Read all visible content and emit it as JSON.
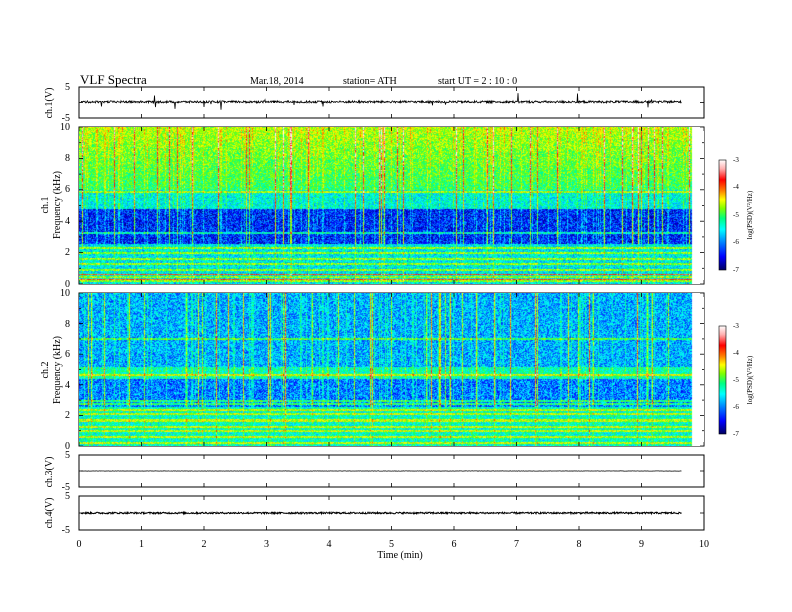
{
  "header": {
    "title": "VLF  Spectra",
    "date": "Mar.18, 2014",
    "station": "station= ATH",
    "start": "start  UT  =   2  : 10 : 0"
  },
  "colors": {
    "spectrogram_scale": [
      "#000060",
      "#0000ff",
      "#0080ff",
      "#00ffff",
      "#00ff80",
      "#80ff00",
      "#ffff00",
      "#ff8000",
      "#ff0000",
      "#ffb0b0",
      "#ffffff"
    ]
  },
  "chart_data": [
    {
      "type": "line",
      "name": "ch1-waveform",
      "ylabel": "ch.1(V)",
      "ylim": [
        -5,
        5
      ],
      "yticks": [
        "5",
        "-5"
      ],
      "xlim": [
        0,
        10
      ],
      "baseline": 0.2,
      "noise_amplitude": 0.35
    },
    {
      "type": "heatmap",
      "name": "ch1-spectrogram",
      "ylabel_top": "ch.1",
      "ylabel": "Frequency  (kHz)",
      "ylim": [
        0,
        10
      ],
      "yticks": [
        "0",
        "2",
        "4",
        "6",
        "8",
        "10"
      ],
      "xlim": [
        0,
        10
      ],
      "data_end_min": 9.8,
      "colorbar": {
        "label": "log(PSD)(V²/Hz)",
        "range": [
          -7,
          -3
        ],
        "ticks": [
          "-3",
          "-4",
          "-5",
          "-6",
          "-7"
        ]
      }
    },
    {
      "type": "heatmap",
      "name": "ch2-spectrogram",
      "ylabel_top": "ch.2",
      "ylabel": "Frequency  (kHz)",
      "ylim": [
        0,
        10
      ],
      "yticks": [
        "0",
        "2",
        "4",
        "6",
        "8",
        "10"
      ],
      "xlim": [
        0,
        10
      ],
      "data_end_min": 9.8,
      "colorbar": {
        "label": "log(PSD)(V²/Hz)",
        "range": [
          -7,
          -3
        ],
        "ticks": [
          "-3",
          "-4",
          "-5",
          "-6",
          "-7"
        ]
      }
    },
    {
      "type": "line",
      "name": "ch3-waveform",
      "ylabel": "ch.3(V)",
      "ylim": [
        -5,
        5
      ],
      "yticks": [
        "5",
        "-5"
      ],
      "xlim": [
        0,
        10
      ],
      "baseline": 0.0,
      "noise_amplitude": 0.05
    },
    {
      "type": "line",
      "name": "ch4-waveform",
      "ylabel": "ch.4(V)",
      "ylim": [
        -5,
        5
      ],
      "yticks": [
        "5",
        "-5"
      ],
      "xlim": [
        0,
        10
      ],
      "baseline": 0.0,
      "noise_amplitude": 0.25
    }
  ],
  "xaxis": {
    "label": "Time  (min)",
    "ticks": [
      "0",
      "1",
      "2",
      "3",
      "4",
      "5",
      "6",
      "7",
      "8",
      "9",
      "10"
    ]
  }
}
